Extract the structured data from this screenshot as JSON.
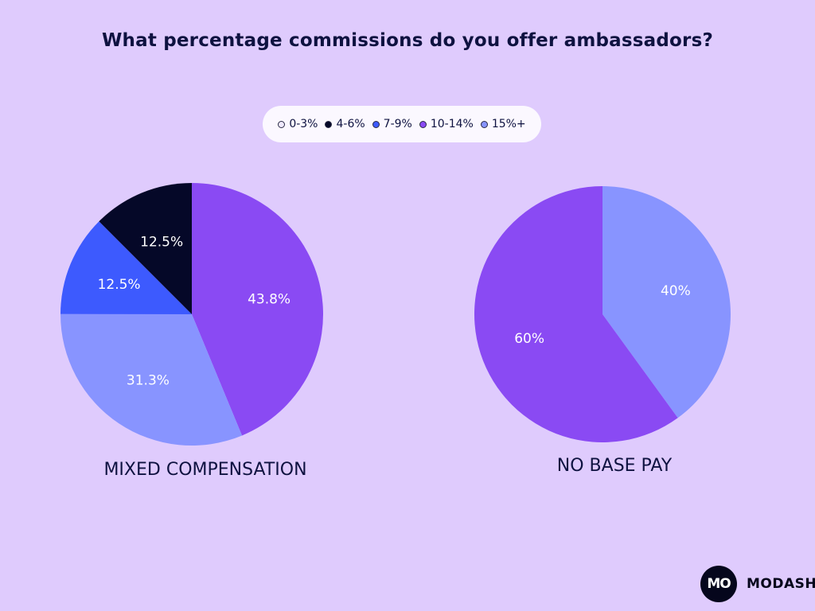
{
  "title": "What percentage commissions do you offer ambassadors?",
  "legend": [
    {
      "label": "0-3%",
      "color": "#f0eaff"
    },
    {
      "label": "4-6%",
      "color": "#050828"
    },
    {
      "label": "7-9%",
      "color": "#3d5afe"
    },
    {
      "label": "10-14%",
      "color": "#8a4af3"
    },
    {
      "label": "15%+",
      "color": "#8894ff"
    }
  ],
  "chart_data": [
    {
      "type": "pie",
      "label": "MIXED COMPENSATION",
      "slices": [
        {
          "category": "10-14%",
          "value": 43.8,
          "label": "43.8%",
          "color": "#8a4af3"
        },
        {
          "category": "15%+",
          "value": 31.3,
          "label": "31.3%",
          "color": "#8894ff"
        },
        {
          "category": "7-9%",
          "value": 12.5,
          "label": "12.5%",
          "color": "#3d5afe"
        },
        {
          "category": "4-6%",
          "value": 12.5,
          "label": "12.5%",
          "color": "#050828"
        }
      ]
    },
    {
      "type": "pie",
      "label": "NO BASE PAY",
      "slices": [
        {
          "category": "15%+",
          "value": 40,
          "label": "40%",
          "color": "#8894ff"
        },
        {
          "category": "10-14%",
          "value": 60,
          "label": "60%",
          "color": "#8a4af3"
        }
      ]
    }
  ],
  "brand": {
    "logo_text": "MO",
    "name": "MODASH"
  }
}
